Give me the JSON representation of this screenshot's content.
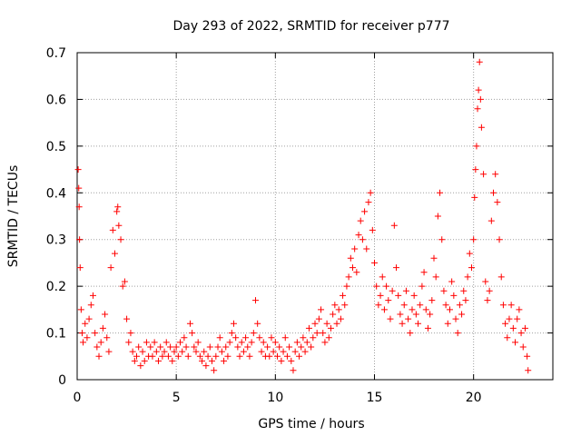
{
  "chart_data": {
    "type": "scatter",
    "title": "Day 293 of 2022, SRMTID for receiver p777",
    "xlabel": "GPS time / hours",
    "ylabel": "SRMTID / TECUs",
    "xlim": [
      0,
      24
    ],
    "ylim": [
      0,
      0.7
    ],
    "xticks": [
      0,
      5,
      10,
      15,
      20
    ],
    "yticks": [
      0,
      0.1,
      0.2,
      0.3,
      0.4,
      0.5,
      0.6,
      0.7
    ],
    "xtick_labels": [
      "0",
      "5",
      "10",
      "15",
      "20"
    ],
    "ytick_labels": [
      "0",
      "0.1",
      "0.2",
      "0.3",
      "0.4",
      "0.5",
      "0.6",
      "0.7"
    ],
    "grid": true,
    "marker": "+",
    "marker_color": "#ff0000",
    "series": [
      {
        "name": "SRMTID",
        "points": [
          [
            0.05,
            0.45
          ],
          [
            0.08,
            0.41
          ],
          [
            0.1,
            0.37
          ],
          [
            0.12,
            0.3
          ],
          [
            0.15,
            0.24
          ],
          [
            0.2,
            0.15
          ],
          [
            0.25,
            0.1
          ],
          [
            0.3,
            0.08
          ],
          [
            0.4,
            0.12
          ],
          [
            0.5,
            0.09
          ],
          [
            0.6,
            0.13
          ],
          [
            0.7,
            0.16
          ],
          [
            0.8,
            0.18
          ],
          [
            0.9,
            0.1
          ],
          [
            1.0,
            0.07
          ],
          [
            1.1,
            0.05
          ],
          [
            1.2,
            0.08
          ],
          [
            1.3,
            0.11
          ],
          [
            1.4,
            0.14
          ],
          [
            1.5,
            0.09
          ],
          [
            1.6,
            0.06
          ],
          [
            1.7,
            0.24
          ],
          [
            1.8,
            0.32
          ],
          [
            1.9,
            0.27
          ],
          [
            2.0,
            0.36
          ],
          [
            2.05,
            0.37
          ],
          [
            2.1,
            0.33
          ],
          [
            2.2,
            0.3
          ],
          [
            2.3,
            0.2
          ],
          [
            2.4,
            0.21
          ],
          [
            2.5,
            0.13
          ],
          [
            2.6,
            0.08
          ],
          [
            2.7,
            0.1
          ],
          [
            2.8,
            0.06
          ],
          [
            2.9,
            0.04
          ],
          [
            3.0,
            0.05
          ],
          [
            3.1,
            0.07
          ],
          [
            3.2,
            0.03
          ],
          [
            3.3,
            0.06
          ],
          [
            3.4,
            0.04
          ],
          [
            3.5,
            0.08
          ],
          [
            3.6,
            0.05
          ],
          [
            3.7,
            0.07
          ],
          [
            3.8,
            0.05
          ],
          [
            3.9,
            0.08
          ],
          [
            4.0,
            0.06
          ],
          [
            4.1,
            0.04
          ],
          [
            4.2,
            0.07
          ],
          [
            4.3,
            0.05
          ],
          [
            4.4,
            0.06
          ],
          [
            4.5,
            0.08
          ],
          [
            4.6,
            0.05
          ],
          [
            4.7,
            0.07
          ],
          [
            4.8,
            0.04
          ],
          [
            4.9,
            0.06
          ],
          [
            5.0,
            0.07
          ],
          [
            5.1,
            0.05
          ],
          [
            5.2,
            0.08
          ],
          [
            5.3,
            0.06
          ],
          [
            5.4,
            0.09
          ],
          [
            5.5,
            0.07
          ],
          [
            5.6,
            0.05
          ],
          [
            5.7,
            0.12
          ],
          [
            5.8,
            0.1
          ],
          [
            5.9,
            0.07
          ],
          [
            6.0,
            0.06
          ],
          [
            6.1,
            0.08
          ],
          [
            6.2,
            0.05
          ],
          [
            6.3,
            0.04
          ],
          [
            6.4,
            0.06
          ],
          [
            6.5,
            0.03
          ],
          [
            6.6,
            0.05
          ],
          [
            6.7,
            0.07
          ],
          [
            6.8,
            0.04
          ],
          [
            6.9,
            0.02
          ],
          [
            7.0,
            0.05
          ],
          [
            7.1,
            0.07
          ],
          [
            7.2,
            0.09
          ],
          [
            7.3,
            0.06
          ],
          [
            7.4,
            0.04
          ],
          [
            7.5,
            0.07
          ],
          [
            7.6,
            0.05
          ],
          [
            7.7,
            0.08
          ],
          [
            7.8,
            0.1
          ],
          [
            7.9,
            0.12
          ],
          [
            8.0,
            0.09
          ],
          [
            8.1,
            0.07
          ],
          [
            8.2,
            0.05
          ],
          [
            8.3,
            0.08
          ],
          [
            8.4,
            0.06
          ],
          [
            8.5,
            0.09
          ],
          [
            8.6,
            0.07
          ],
          [
            8.7,
            0.05
          ],
          [
            8.8,
            0.08
          ],
          [
            8.9,
            0.1
          ],
          [
            9.0,
            0.17
          ],
          [
            9.1,
            0.12
          ],
          [
            9.2,
            0.09
          ],
          [
            9.3,
            0.06
          ],
          [
            9.4,
            0.08
          ],
          [
            9.5,
            0.05
          ],
          [
            9.6,
            0.07
          ],
          [
            9.7,
            0.05
          ],
          [
            9.8,
            0.09
          ],
          [
            9.9,
            0.06
          ],
          [
            10.0,
            0.08
          ],
          [
            10.1,
            0.05
          ],
          [
            10.2,
            0.07
          ],
          [
            10.3,
            0.04
          ],
          [
            10.4,
            0.06
          ],
          [
            10.5,
            0.09
          ],
          [
            10.6,
            0.05
          ],
          [
            10.7,
            0.07
          ],
          [
            10.8,
            0.04
          ],
          [
            10.9,
            0.02
          ],
          [
            11.0,
            0.06
          ],
          [
            11.1,
            0.08
          ],
          [
            11.2,
            0.05
          ],
          [
            11.3,
            0.07
          ],
          [
            11.4,
            0.09
          ],
          [
            11.5,
            0.06
          ],
          [
            11.6,
            0.08
          ],
          [
            11.7,
            0.11
          ],
          [
            11.8,
            0.07
          ],
          [
            11.9,
            0.09
          ],
          [
            12.0,
            0.12
          ],
          [
            12.1,
            0.1
          ],
          [
            12.2,
            0.13
          ],
          [
            12.3,
            0.15
          ],
          [
            12.4,
            0.1
          ],
          [
            12.5,
            0.08
          ],
          [
            12.6,
            0.12
          ],
          [
            12.7,
            0.09
          ],
          [
            12.8,
            0.11
          ],
          [
            12.9,
            0.14
          ],
          [
            13.0,
            0.16
          ],
          [
            13.1,
            0.12
          ],
          [
            13.2,
            0.15
          ],
          [
            13.3,
            0.13
          ],
          [
            13.4,
            0.18
          ],
          [
            13.5,
            0.16
          ],
          [
            13.6,
            0.2
          ],
          [
            13.7,
            0.22
          ],
          [
            13.8,
            0.26
          ],
          [
            13.9,
            0.24
          ],
          [
            14.0,
            0.28
          ],
          [
            14.1,
            0.23
          ],
          [
            14.2,
            0.31
          ],
          [
            14.3,
            0.34
          ],
          [
            14.4,
            0.3
          ],
          [
            14.5,
            0.36
          ],
          [
            14.6,
            0.28
          ],
          [
            14.7,
            0.38
          ],
          [
            14.8,
            0.4
          ],
          [
            14.9,
            0.32
          ],
          [
            15.0,
            0.25
          ],
          [
            15.1,
            0.2
          ],
          [
            15.2,
            0.16
          ],
          [
            15.3,
            0.18
          ],
          [
            15.4,
            0.22
          ],
          [
            15.5,
            0.15
          ],
          [
            15.6,
            0.2
          ],
          [
            15.7,
            0.17
          ],
          [
            15.8,
            0.13
          ],
          [
            15.9,
            0.19
          ],
          [
            16.0,
            0.33
          ],
          [
            16.1,
            0.24
          ],
          [
            16.2,
            0.18
          ],
          [
            16.3,
            0.14
          ],
          [
            16.4,
            0.12
          ],
          [
            16.5,
            0.16
          ],
          [
            16.6,
            0.19
          ],
          [
            16.7,
            0.13
          ],
          [
            16.8,
            0.1
          ],
          [
            16.9,
            0.15
          ],
          [
            17.0,
            0.18
          ],
          [
            17.1,
            0.14
          ],
          [
            17.2,
            0.12
          ],
          [
            17.3,
            0.16
          ],
          [
            17.4,
            0.2
          ],
          [
            17.5,
            0.23
          ],
          [
            17.6,
            0.15
          ],
          [
            17.7,
            0.11
          ],
          [
            17.8,
            0.14
          ],
          [
            17.9,
            0.17
          ],
          [
            18.0,
            0.26
          ],
          [
            18.1,
            0.22
          ],
          [
            18.2,
            0.35
          ],
          [
            18.3,
            0.4
          ],
          [
            18.4,
            0.3
          ],
          [
            18.5,
            0.19
          ],
          [
            18.6,
            0.16
          ],
          [
            18.7,
            0.12
          ],
          [
            18.8,
            0.15
          ],
          [
            18.9,
            0.21
          ],
          [
            19.0,
            0.18
          ],
          [
            19.1,
            0.13
          ],
          [
            19.2,
            0.1
          ],
          [
            19.3,
            0.16
          ],
          [
            19.4,
            0.14
          ],
          [
            19.5,
            0.19
          ],
          [
            19.6,
            0.17
          ],
          [
            19.7,
            0.22
          ],
          [
            19.8,
            0.27
          ],
          [
            19.9,
            0.24
          ],
          [
            20.0,
            0.3
          ],
          [
            20.05,
            0.39
          ],
          [
            20.1,
            0.45
          ],
          [
            20.15,
            0.5
          ],
          [
            20.2,
            0.58
          ],
          [
            20.25,
            0.62
          ],
          [
            20.3,
            0.68
          ],
          [
            20.35,
            0.6
          ],
          [
            20.4,
            0.54
          ],
          [
            20.5,
            0.44
          ],
          [
            20.6,
            0.21
          ],
          [
            20.7,
            0.17
          ],
          [
            20.8,
            0.19
          ],
          [
            20.9,
            0.34
          ],
          [
            21.0,
            0.4
          ],
          [
            21.1,
            0.44
          ],
          [
            21.2,
            0.38
          ],
          [
            21.3,
            0.3
          ],
          [
            21.4,
            0.22
          ],
          [
            21.5,
            0.16
          ],
          [
            21.6,
            0.12
          ],
          [
            21.7,
            0.09
          ],
          [
            21.8,
            0.13
          ],
          [
            21.9,
            0.16
          ],
          [
            22.0,
            0.11
          ],
          [
            22.1,
            0.08
          ],
          [
            22.2,
            0.13
          ],
          [
            22.3,
            0.15
          ],
          [
            22.4,
            0.1
          ],
          [
            22.5,
            0.07
          ],
          [
            22.6,
            0.11
          ],
          [
            22.7,
            0.05
          ],
          [
            22.75,
            0.02
          ]
        ]
      }
    ]
  }
}
